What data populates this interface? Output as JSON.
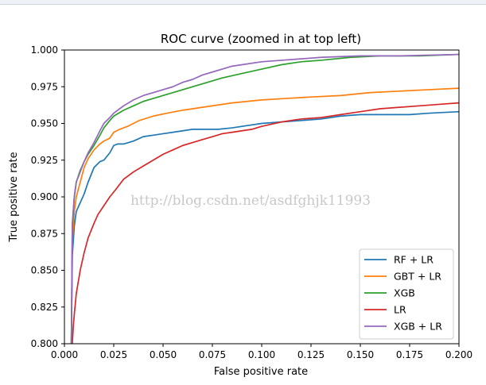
{
  "chart_data": {
    "type": "line",
    "title": "ROC curve (zoomed in at top left)",
    "xlabel": "False positive rate",
    "ylabel": "True positive rate",
    "xlim": [
      0.0,
      0.2
    ],
    "ylim": [
      0.8,
      1.0
    ],
    "xticks": [
      "0.000",
      "0.025",
      "0.050",
      "0.075",
      "0.100",
      "0.125",
      "0.150",
      "0.175",
      "0.200"
    ],
    "yticks": [
      "0.800",
      "0.825",
      "0.850",
      "0.875",
      "0.900",
      "0.925",
      "0.950",
      "0.975",
      "1.000"
    ],
    "grid": false,
    "legend_position": "lower-right",
    "watermark": "http://blog.csdn.net/asdfghjk11993",
    "series": [
      {
        "name": "RF + LR",
        "color": "#1f77b4",
        "x": [
          0.0035,
          0.004,
          0.005,
          0.006,
          0.008,
          0.01,
          0.012,
          0.015,
          0.018,
          0.02,
          0.023,
          0.025,
          0.027,
          0.03,
          0.035,
          0.04,
          0.045,
          0.05,
          0.055,
          0.06,
          0.065,
          0.07,
          0.078,
          0.085,
          0.09,
          0.1,
          0.11,
          0.12,
          0.13,
          0.14,
          0.15,
          0.16,
          0.175,
          0.185,
          0.2
        ],
        "y": [
          0.8,
          0.86,
          0.88,
          0.89,
          0.896,
          0.902,
          0.91,
          0.92,
          0.924,
          0.925,
          0.93,
          0.935,
          0.936,
          0.936,
          0.938,
          0.941,
          0.942,
          0.943,
          0.944,
          0.945,
          0.946,
          0.946,
          0.946,
          0.947,
          0.948,
          0.95,
          0.951,
          0.952,
          0.953,
          0.955,
          0.956,
          0.956,
          0.956,
          0.957,
          0.958
        ]
      },
      {
        "name": "GBT + LR",
        "color": "#ff7f0e",
        "x": [
          0.0035,
          0.004,
          0.005,
          0.006,
          0.008,
          0.01,
          0.012,
          0.015,
          0.018,
          0.02,
          0.023,
          0.025,
          0.028,
          0.032,
          0.038,
          0.045,
          0.052,
          0.06,
          0.07,
          0.085,
          0.1,
          0.112,
          0.125,
          0.14,
          0.155,
          0.17,
          0.185,
          0.2
        ],
        "y": [
          0.8,
          0.87,
          0.89,
          0.9,
          0.91,
          0.92,
          0.926,
          0.932,
          0.936,
          0.938,
          0.94,
          0.944,
          0.946,
          0.948,
          0.952,
          0.955,
          0.957,
          0.959,
          0.961,
          0.964,
          0.966,
          0.967,
          0.968,
          0.969,
          0.971,
          0.972,
          0.973,
          0.974
        ]
      },
      {
        "name": "XGB",
        "color": "#2ca02c",
        "x": [
          0.0035,
          0.004,
          0.005,
          0.006,
          0.008,
          0.01,
          0.012,
          0.015,
          0.018,
          0.02,
          0.023,
          0.025,
          0.03,
          0.035,
          0.04,
          0.045,
          0.05,
          0.055,
          0.06,
          0.07,
          0.08,
          0.09,
          0.1,
          0.11,
          0.12,
          0.13,
          0.145,
          0.16,
          0.18,
          0.2
        ],
        "y": [
          0.8,
          0.88,
          0.9,
          0.91,
          0.918,
          0.924,
          0.929,
          0.935,
          0.942,
          0.947,
          0.952,
          0.955,
          0.959,
          0.962,
          0.965,
          0.967,
          0.969,
          0.971,
          0.973,
          0.977,
          0.981,
          0.984,
          0.987,
          0.99,
          0.992,
          0.993,
          0.995,
          0.996,
          0.996,
          0.997
        ]
      },
      {
        "name": "LR",
        "color": "#d62728",
        "x": [
          0.004,
          0.0045,
          0.005,
          0.006,
          0.008,
          0.01,
          0.012,
          0.015,
          0.017,
          0.02,
          0.023,
          0.026,
          0.03,
          0.035,
          0.04,
          0.045,
          0.05,
          0.055,
          0.06,
          0.065,
          0.07,
          0.075,
          0.08,
          0.085,
          0.09,
          0.095,
          0.1,
          0.11,
          0.12,
          0.13,
          0.14,
          0.15,
          0.16,
          0.17,
          0.18,
          0.19,
          0.2
        ],
        "y": [
          0.8,
          0.812,
          0.82,
          0.834,
          0.85,
          0.862,
          0.872,
          0.882,
          0.888,
          0.894,
          0.9,
          0.905,
          0.912,
          0.917,
          0.921,
          0.925,
          0.929,
          0.932,
          0.935,
          0.937,
          0.939,
          0.941,
          0.943,
          0.944,
          0.945,
          0.946,
          0.948,
          0.951,
          0.953,
          0.954,
          0.956,
          0.958,
          0.96,
          0.961,
          0.962,
          0.963,
          0.964
        ]
      },
      {
        "name": "XGB + LR",
        "color": "#9467bd",
        "x": [
          0.0035,
          0.004,
          0.005,
          0.006,
          0.008,
          0.01,
          0.012,
          0.015,
          0.018,
          0.02,
          0.023,
          0.025,
          0.03,
          0.035,
          0.04,
          0.045,
          0.05,
          0.055,
          0.06,
          0.065,
          0.07,
          0.075,
          0.08,
          0.085,
          0.09,
          0.1,
          0.11,
          0.12,
          0.13,
          0.15,
          0.17,
          0.2
        ],
        "y": [
          0.8,
          0.882,
          0.9,
          0.91,
          0.917,
          0.924,
          0.93,
          0.937,
          0.945,
          0.95,
          0.954,
          0.957,
          0.962,
          0.966,
          0.969,
          0.971,
          0.973,
          0.975,
          0.978,
          0.98,
          0.983,
          0.985,
          0.987,
          0.989,
          0.99,
          0.992,
          0.993,
          0.994,
          0.995,
          0.996,
          0.996,
          0.997
        ]
      }
    ]
  }
}
